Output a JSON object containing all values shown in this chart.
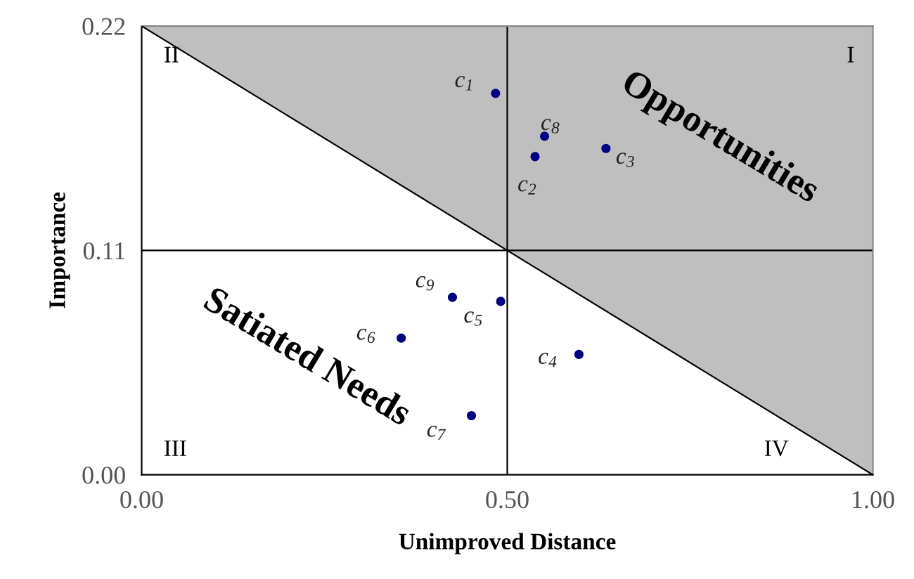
{
  "chart_data": {
    "type": "scatter",
    "xlabel": "Unimproved Distance",
    "ylabel": "Importance",
    "xlim": [
      0,
      1
    ],
    "ylim": [
      0,
      0.22
    ],
    "xticks": [
      {
        "value": 0,
        "label": "0.00"
      },
      {
        "value": 0.5,
        "label": "0.50"
      },
      {
        "value": 1,
        "label": "1.00"
      }
    ],
    "yticks": [
      {
        "value": 0,
        "label": "0.00"
      },
      {
        "value": 0.11,
        "label": "0.11"
      },
      {
        "value": 0.22,
        "label": "0.22"
      }
    ],
    "grid": false,
    "legend": false,
    "series": [
      {
        "name": "c$_{1}$",
        "color": "#000080",
        "marker": "circle",
        "x": [
          0.484
        ],
        "values": [
          0.187
        ]
      },
      {
        "name": "c$_{2}$",
        "color": "#000080",
        "marker": "circle",
        "x": [
          0.538
        ],
        "values": [
          0.156
        ]
      },
      {
        "name": "c$_{3}$",
        "color": "#000080",
        "marker": "circle",
        "x": [
          0.635
        ],
        "values": [
          0.16
        ]
      },
      {
        "name": "c$_{4}$",
        "color": "#000080",
        "marker": "circle",
        "x": [
          0.598
        ],
        "values": [
          0.059
        ]
      },
      {
        "name": "c$_{5}$",
        "color": "#000080",
        "marker": "circle",
        "x": [
          0.491
        ],
        "values": [
          0.085
        ]
      },
      {
        "name": "c$_{6}$",
        "color": "#000080",
        "marker": "circle",
        "x": [
          0.355
        ],
        "values": [
          0.067
        ]
      },
      {
        "name": "c$_{7}$",
        "color": "#000080",
        "marker": "circle",
        "x": [
          0.451
        ],
        "values": [
          0.029
        ]
      },
      {
        "name": "c$_{8}$",
        "color": "#000080",
        "marker": "circle",
        "x": [
          0.551
        ],
        "values": [
          0.166
        ]
      },
      {
        "name": "c$_{9}$",
        "color": "#000080",
        "marker": "circle",
        "x": [
          0.425
        ],
        "values": [
          0.087
        ]
      },
      {
        "type": "line",
        "color": "#000000",
        "x": [
          0,
          1
        ],
        "values": [
          0.22,
          0
        ],
        "lower": [
          0.22,
          0
        ],
        "upper": [
          0.22,
          0.22
        ]
      }
    ],
    "ref_lines": [
      {
        "axis": "x",
        "value": 0.5,
        "color": "#000000"
      },
      {
        "axis": "y",
        "value": 0.11,
        "color": "#000000"
      }
    ],
    "annotations": [
      "I",
      "II",
      "III",
      "IV",
      "Opportunities",
      "Satiated Needs"
    ]
  }
}
